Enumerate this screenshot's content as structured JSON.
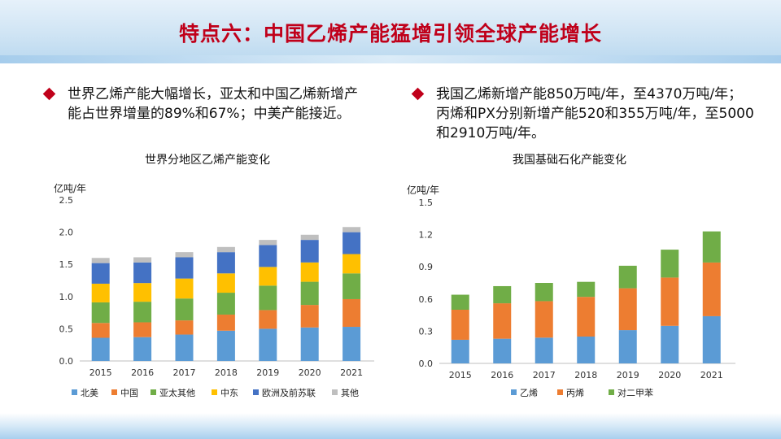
{
  "title": "特点六：中国乙烯产能猛增引领全球产能增长",
  "bullets": {
    "left": "世界乙烯产能大幅增长，亚太和中国乙烯新增产能占世界增量的89%和67%；中美产能接近。",
    "right": "我国乙烯新增产能850万吨/年，至4370万吨/年；丙烯和PX分别新增产能520和355万吨/年，至5000和2910万吨/年。"
  },
  "colors": {
    "title": "#c0001a",
    "north_america": "#5b9bd5",
    "china": "#ed7d31",
    "asia_other": "#70ad47",
    "middle_east": "#ffc000",
    "europe_fsu": "#4472c4",
    "others": "#bfbfbf"
  },
  "chart_data": [
    {
      "type": "bar",
      "stacked": true,
      "title": "世界分地区乙烯产能变化",
      "ylabel": "亿吨/年",
      "ylim": [
        0,
        2.5
      ],
      "yticks": [
        "0.0",
        "0.5",
        "1.0",
        "1.5",
        "2.0",
        "2.5"
      ],
      "categories": [
        "2015",
        "2016",
        "2017",
        "2018",
        "2019",
        "2020",
        "2021"
      ],
      "series": [
        {
          "name": "北美",
          "color": "#5b9bd5",
          "values": [
            0.36,
            0.37,
            0.41,
            0.47,
            0.5,
            0.52,
            0.53
          ]
        },
        {
          "name": "中国",
          "color": "#ed7d31",
          "values": [
            0.23,
            0.23,
            0.22,
            0.25,
            0.29,
            0.35,
            0.43
          ]
        },
        {
          "name": "亚太其他",
          "color": "#70ad47",
          "values": [
            0.32,
            0.32,
            0.34,
            0.34,
            0.38,
            0.36,
            0.4
          ]
        },
        {
          "name": "中东",
          "color": "#ffc000",
          "values": [
            0.29,
            0.29,
            0.31,
            0.3,
            0.29,
            0.3,
            0.3
          ]
        },
        {
          "name": "欧洲及前苏联",
          "color": "#4472c4",
          "values": [
            0.32,
            0.32,
            0.33,
            0.33,
            0.34,
            0.35,
            0.34
          ]
        },
        {
          "name": "其他",
          "color": "#bfbfbf",
          "values": [
            0.08,
            0.08,
            0.08,
            0.08,
            0.08,
            0.08,
            0.08
          ]
        }
      ]
    },
    {
      "type": "bar",
      "stacked": true,
      "title": "我国基础石化产能变化",
      "ylabel": "亿吨/年",
      "ylim": [
        0,
        1.5
      ],
      "yticks": [
        "0.0",
        "0.3",
        "0.6",
        "0.9",
        "1.2",
        "1.5"
      ],
      "categories": [
        "2015",
        "2016",
        "2017",
        "2018",
        "2019",
        "2020",
        "2021"
      ],
      "series": [
        {
          "name": "乙烯",
          "color": "#5b9bd5",
          "values": [
            0.22,
            0.23,
            0.24,
            0.25,
            0.31,
            0.35,
            0.44
          ]
        },
        {
          "name": "丙烯",
          "color": "#ed7d31",
          "values": [
            0.28,
            0.33,
            0.34,
            0.37,
            0.39,
            0.45,
            0.5
          ]
        },
        {
          "name": "对二甲苯",
          "color": "#70ad47",
          "values": [
            0.14,
            0.16,
            0.17,
            0.14,
            0.21,
            0.26,
            0.29
          ]
        }
      ]
    }
  ]
}
